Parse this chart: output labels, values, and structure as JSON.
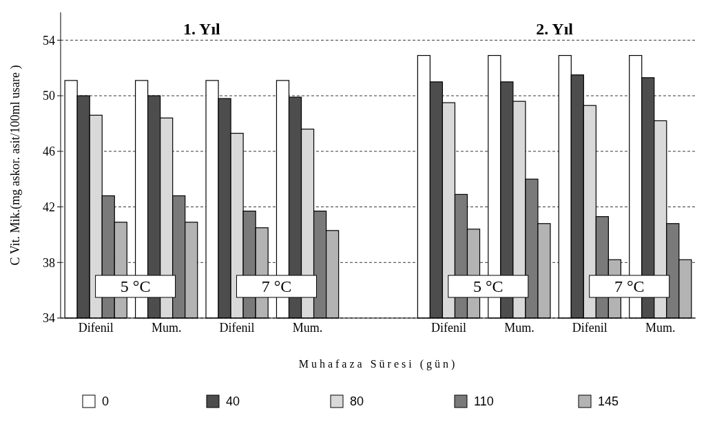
{
  "chart_data": {
    "type": "bar",
    "xlabel": "Muhafaza Süresi (gün)",
    "ylabel": "C Vit. Mik.(mg askor. asit/100ml usare )",
    "categories": [
      "Difenil",
      "Mum.",
      "Difenil",
      "Mum.",
      null,
      "Difenil",
      "Mum.",
      "Difenil",
      "Mum."
    ],
    "series": [
      {
        "name": "0",
        "color": "#ffffff",
        "values": [
          51.1,
          51.1,
          51.1,
          51.1,
          null,
          52.9,
          52.9,
          52.9,
          52.9
        ]
      },
      {
        "name": "40",
        "color": "#4d4d4d",
        "values": [
          50.0,
          50.0,
          49.8,
          49.9,
          null,
          51.0,
          51.0,
          51.5,
          51.3
        ]
      },
      {
        "name": "80",
        "color": "#d9d9d9",
        "values": [
          48.6,
          48.4,
          47.3,
          47.6,
          null,
          49.5,
          49.6,
          49.3,
          48.2
        ]
      },
      {
        "name": "110",
        "color": "#7a7a7a",
        "values": [
          42.8,
          42.8,
          41.7,
          41.7,
          null,
          42.9,
          44.0,
          41.3,
          40.8
        ]
      },
      {
        "name": "145",
        "color": "#b3b3b3",
        "values": [
          40.9,
          40.9,
          40.5,
          40.3,
          null,
          40.4,
          40.8,
          38.2,
          38.2
        ]
      }
    ],
    "annotations": [
      "1. Yıl",
      "2. Yıl",
      "5 °C",
      "7 °C",
      "5 °C",
      "7 °C"
    ],
    "ylim": [
      34,
      56
    ],
    "yticks": [
      34,
      38,
      42,
      46,
      50,
      54
    ],
    "grid": "y",
    "legend": "bottom"
  }
}
